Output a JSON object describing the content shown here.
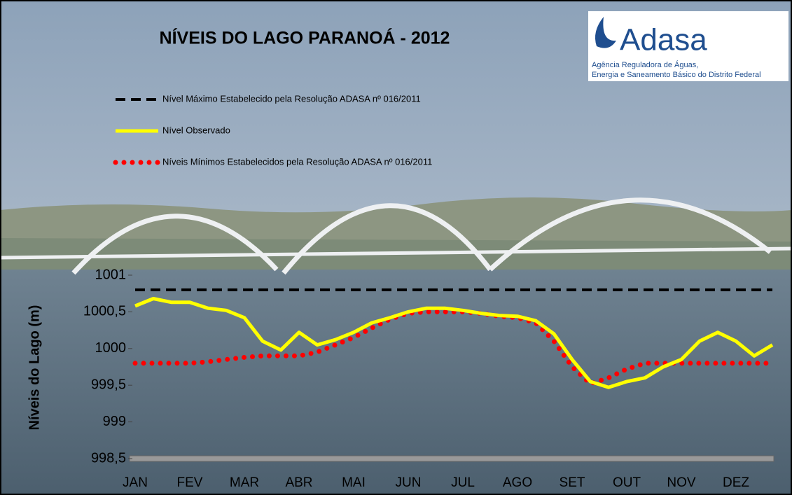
{
  "chart_data": {
    "type": "line",
    "title": "NÍVEIS DO LAGO PARANOÁ - 2012",
    "y_label": "Níveis do Lago (m)",
    "categories": [
      "JAN",
      null,
      null,
      "FEV",
      null,
      null,
      "MAR",
      null,
      null,
      "ABR",
      null,
      null,
      "MAI",
      null,
      null,
      "JUN",
      null,
      null,
      "JUL",
      null,
      null,
      "AGO",
      null,
      null,
      "SET",
      null,
      null,
      "OUT",
      null,
      null,
      "NOV",
      null,
      null,
      "DEZ",
      null,
      null
    ],
    "series": [
      {
        "name": "Nível Máximo Estabelecido pela Resolução ADASA nº 016/2011",
        "color": "#000000",
        "style": "dashed",
        "values": [
          1000.8,
          1000.8,
          1000.8,
          1000.8,
          1000.8,
          1000.8,
          1000.8,
          1000.8,
          1000.8,
          1000.8,
          1000.8,
          1000.8,
          1000.8,
          1000.8,
          1000.8,
          1000.8,
          1000.8,
          1000.8,
          1000.8,
          1000.8,
          1000.8,
          1000.8,
          1000.8,
          1000.8,
          1000.8,
          1000.8,
          1000.8,
          1000.8,
          1000.8,
          1000.8,
          1000.8,
          1000.8,
          1000.8,
          1000.8,
          1000.8,
          1000.8
        ]
      },
      {
        "name": "Nível Observado",
        "color": "#ffff00",
        "style": "solid",
        "values": [
          1000.58,
          1000.68,
          1000.63,
          1000.63,
          1000.55,
          1000.52,
          1000.42,
          1000.1,
          999.98,
          1000.22,
          1000.05,
          1000.12,
          1000.22,
          1000.35,
          1000.42,
          1000.5,
          1000.55,
          1000.55,
          1000.52,
          1000.48,
          1000.45,
          1000.44,
          1000.38,
          1000.2,
          999.85,
          999.55,
          999.47,
          999.55,
          999.6,
          999.75,
          999.85,
          1000.1,
          1000.22,
          1000.1,
          999.9,
          1000.05
        ]
      },
      {
        "name": "Níveis Mínimos Estabelecidos pela Resolução ADASA nº 016/2011",
        "color": "#ff0000",
        "style": "dotted",
        "values": [
          999.8,
          999.8,
          999.8,
          999.8,
          999.82,
          999.85,
          999.88,
          999.9,
          999.9,
          999.9,
          999.95,
          1000.05,
          1000.15,
          1000.28,
          1000.4,
          1000.48,
          1000.5,
          1000.5,
          1000.5,
          1000.48,
          1000.44,
          1000.42,
          1000.35,
          1000.1,
          999.75,
          999.52,
          999.6,
          999.72,
          999.8,
          999.8,
          999.8,
          999.8,
          999.8,
          999.8,
          999.8,
          999.8
        ]
      }
    ],
    "ylim": [
      998.5,
      1001
    ],
    "yticks": [
      {
        "value": 998.5,
        "label": "998,5"
      },
      999,
      {
        "value": 999.5,
        "label": "999,5"
      },
      1000,
      {
        "value": 1000.5,
        "label": "1000,5"
      },
      1001
    ],
    "grid": false,
    "legend": "top-left"
  },
  "logo": {
    "name": "Adasa",
    "lines": [
      "Agência Reguladora de Águas,",
      "Energia e Saneamento Básico do Distrito Federal"
    ]
  }
}
